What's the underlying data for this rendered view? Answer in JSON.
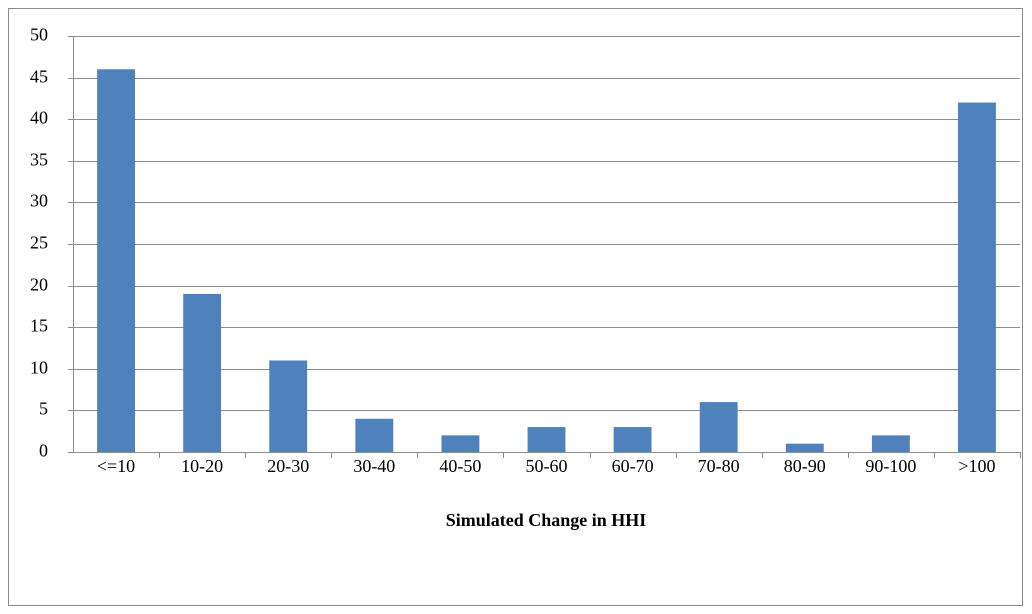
{
  "chart_data": {
    "type": "bar",
    "x_label": "Simulated Change in HHI",
    "categories": [
      "<=10",
      "10-20",
      "20-30",
      "30-40",
      "40-50",
      "50-60",
      "60-70",
      "70-80",
      "80-90",
      "90-100",
      ">100"
    ],
    "values": [
      46,
      19,
      11,
      4,
      2,
      3,
      3,
      6,
      1,
      2,
      42
    ],
    "color": "#4f81bd",
    "ylim": [
      0,
      50
    ],
    "yticks": [
      0,
      5,
      10,
      15,
      20,
      25,
      30,
      35,
      40,
      45,
      50
    ],
    "grid": true
  }
}
